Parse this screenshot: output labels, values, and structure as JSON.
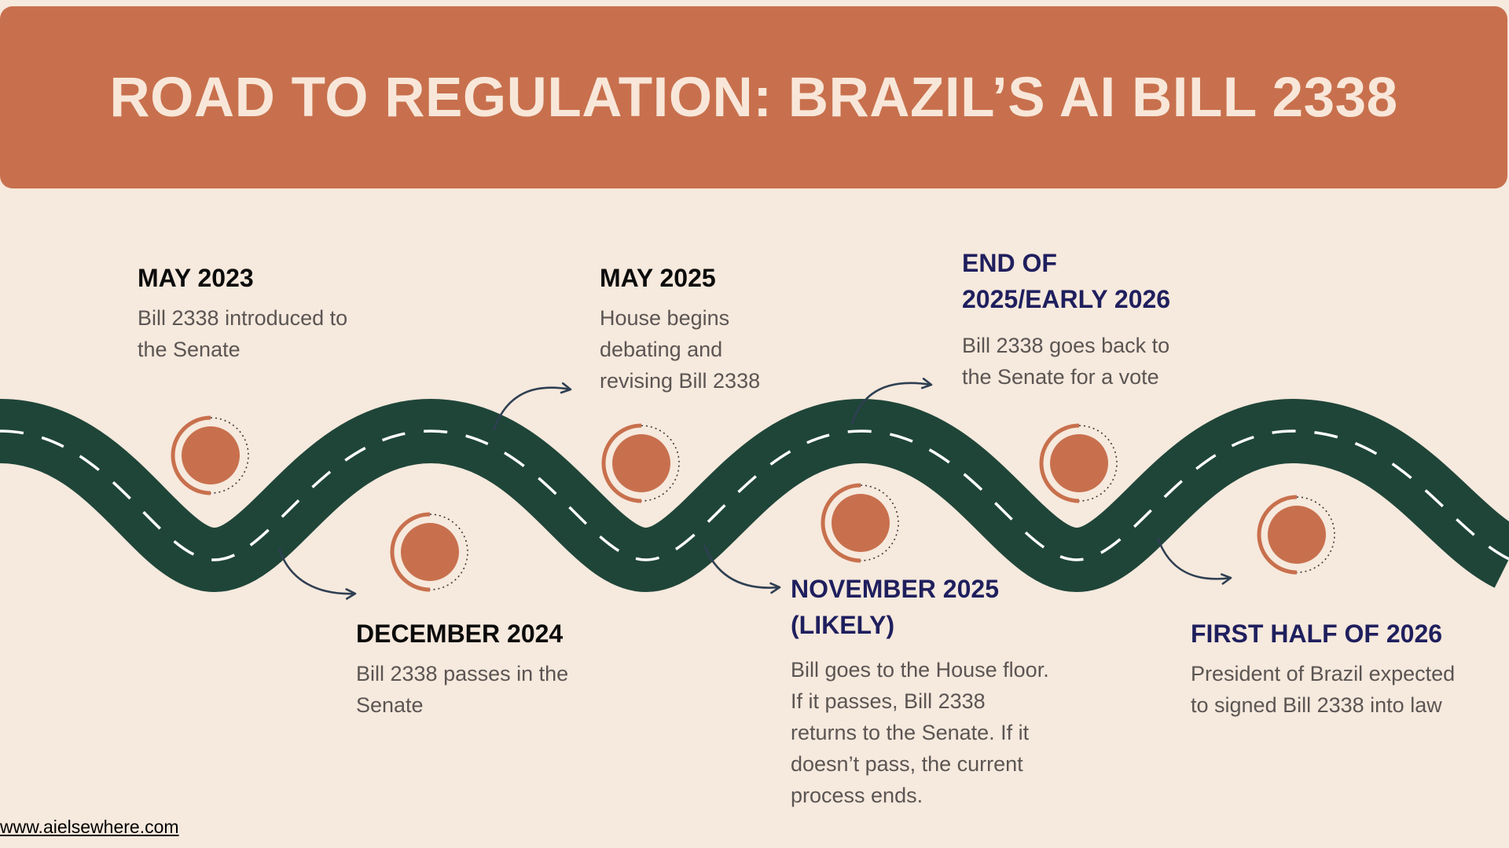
{
  "title": "ROAD TO REGULATION: BRAZIL’S AI BILL 2338",
  "events": [
    {
      "date": "MAY 2023",
      "description": "Bill 2338 introduced to the Senate"
    },
    {
      "date": "DECEMBER 2024",
      "description": "Bill 2338 passes in the Senate"
    },
    {
      "date": "MAY 2025",
      "description": "House begins debating and revising Bill 2338"
    },
    {
      "date": "NOVEMBER 2025 (LIKELY)",
      "description": "Bill goes to the House floor. If it passes, Bill 2338 returns to the Senate. If it doesn’t pass, the current process ends."
    },
    {
      "date": "END OF 2025/EARLY 2026",
      "description": "Bill 2338 goes back to the Senate for a vote"
    },
    {
      "date": "FIRST HALF OF 2026",
      "description": "President of Brazil expected to signed Bill 2338 into law"
    }
  ],
  "footer": {
    "website": "www.aielsewhere.com"
  },
  "colors": {
    "background": "#f6e9dd",
    "banner": "#c8704d",
    "road": "#1f4539",
    "marker": "#c8704d",
    "navy_text": "#1f1f5e"
  }
}
